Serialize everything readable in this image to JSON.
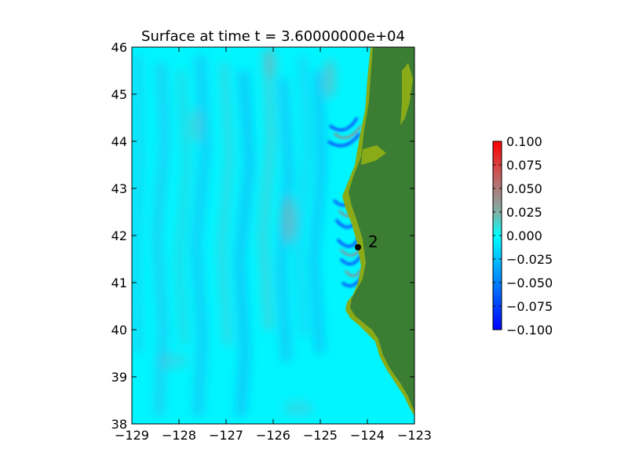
{
  "figure": {
    "title": "Surface at time t = 3.60000000e+04"
  },
  "map": {
    "x_ticks": [
      "−129",
      "−128",
      "−127",
      "−126",
      "−125",
      "−124",
      "−123"
    ],
    "y_ticks": [
      "38",
      "39",
      "40",
      "41",
      "42",
      "43",
      "44",
      "45",
      "46"
    ],
    "xlim": [
      -129,
      -123
    ],
    "ylim": [
      38,
      46
    ],
    "ocean_color": "#00ffff",
    "land_color": "#3a7d33",
    "coast_color": "#8aab18"
  },
  "gauge": {
    "label": "2",
    "lon": -124.2,
    "lat": 41.75
  },
  "colorbar": {
    "ticks": [
      "0.100",
      "0.075",
      "0.050",
      "0.025",
      "0.000",
      "−0.025",
      "−0.050",
      "−0.075",
      "−0.100"
    ],
    "range": [
      -0.1,
      0.1
    ],
    "colors": [
      "#0000ff",
      "#0080ff",
      "#00ffff",
      "#7fb2a8",
      "#bf6666",
      "#ff0000"
    ]
  }
}
